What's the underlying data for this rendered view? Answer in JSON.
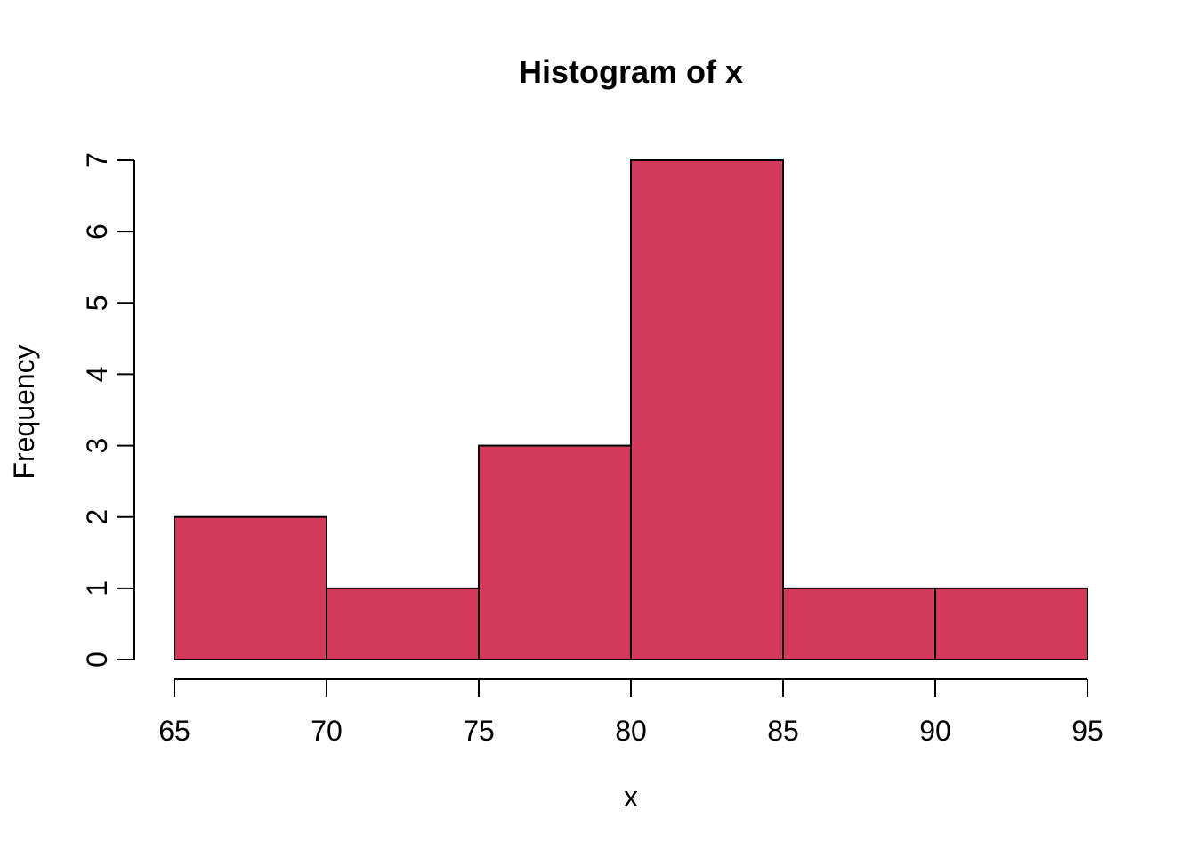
{
  "chart_data": {
    "type": "bar",
    "subtype": "histogram",
    "title": "Histogram of x",
    "xlabel": "x",
    "ylabel": "Frequency",
    "bins": {
      "breaks": [
        65,
        70,
        75,
        80,
        85,
        90,
        95
      ],
      "counts": [
        2,
        1,
        3,
        7,
        1,
        1
      ]
    },
    "x_ticks": [
      65,
      70,
      75,
      80,
      85,
      90,
      95
    ],
    "y_ticks": [
      0,
      1,
      2,
      3,
      4,
      5,
      6,
      7
    ],
    "xlim": [
      65,
      95
    ],
    "ylim": [
      0,
      7
    ],
    "grid": "off",
    "legend": "none",
    "colors": {
      "bar_fill": "#d3395b",
      "bar_stroke": "#000000",
      "axis": "#000000",
      "background": "#ffffff"
    }
  }
}
